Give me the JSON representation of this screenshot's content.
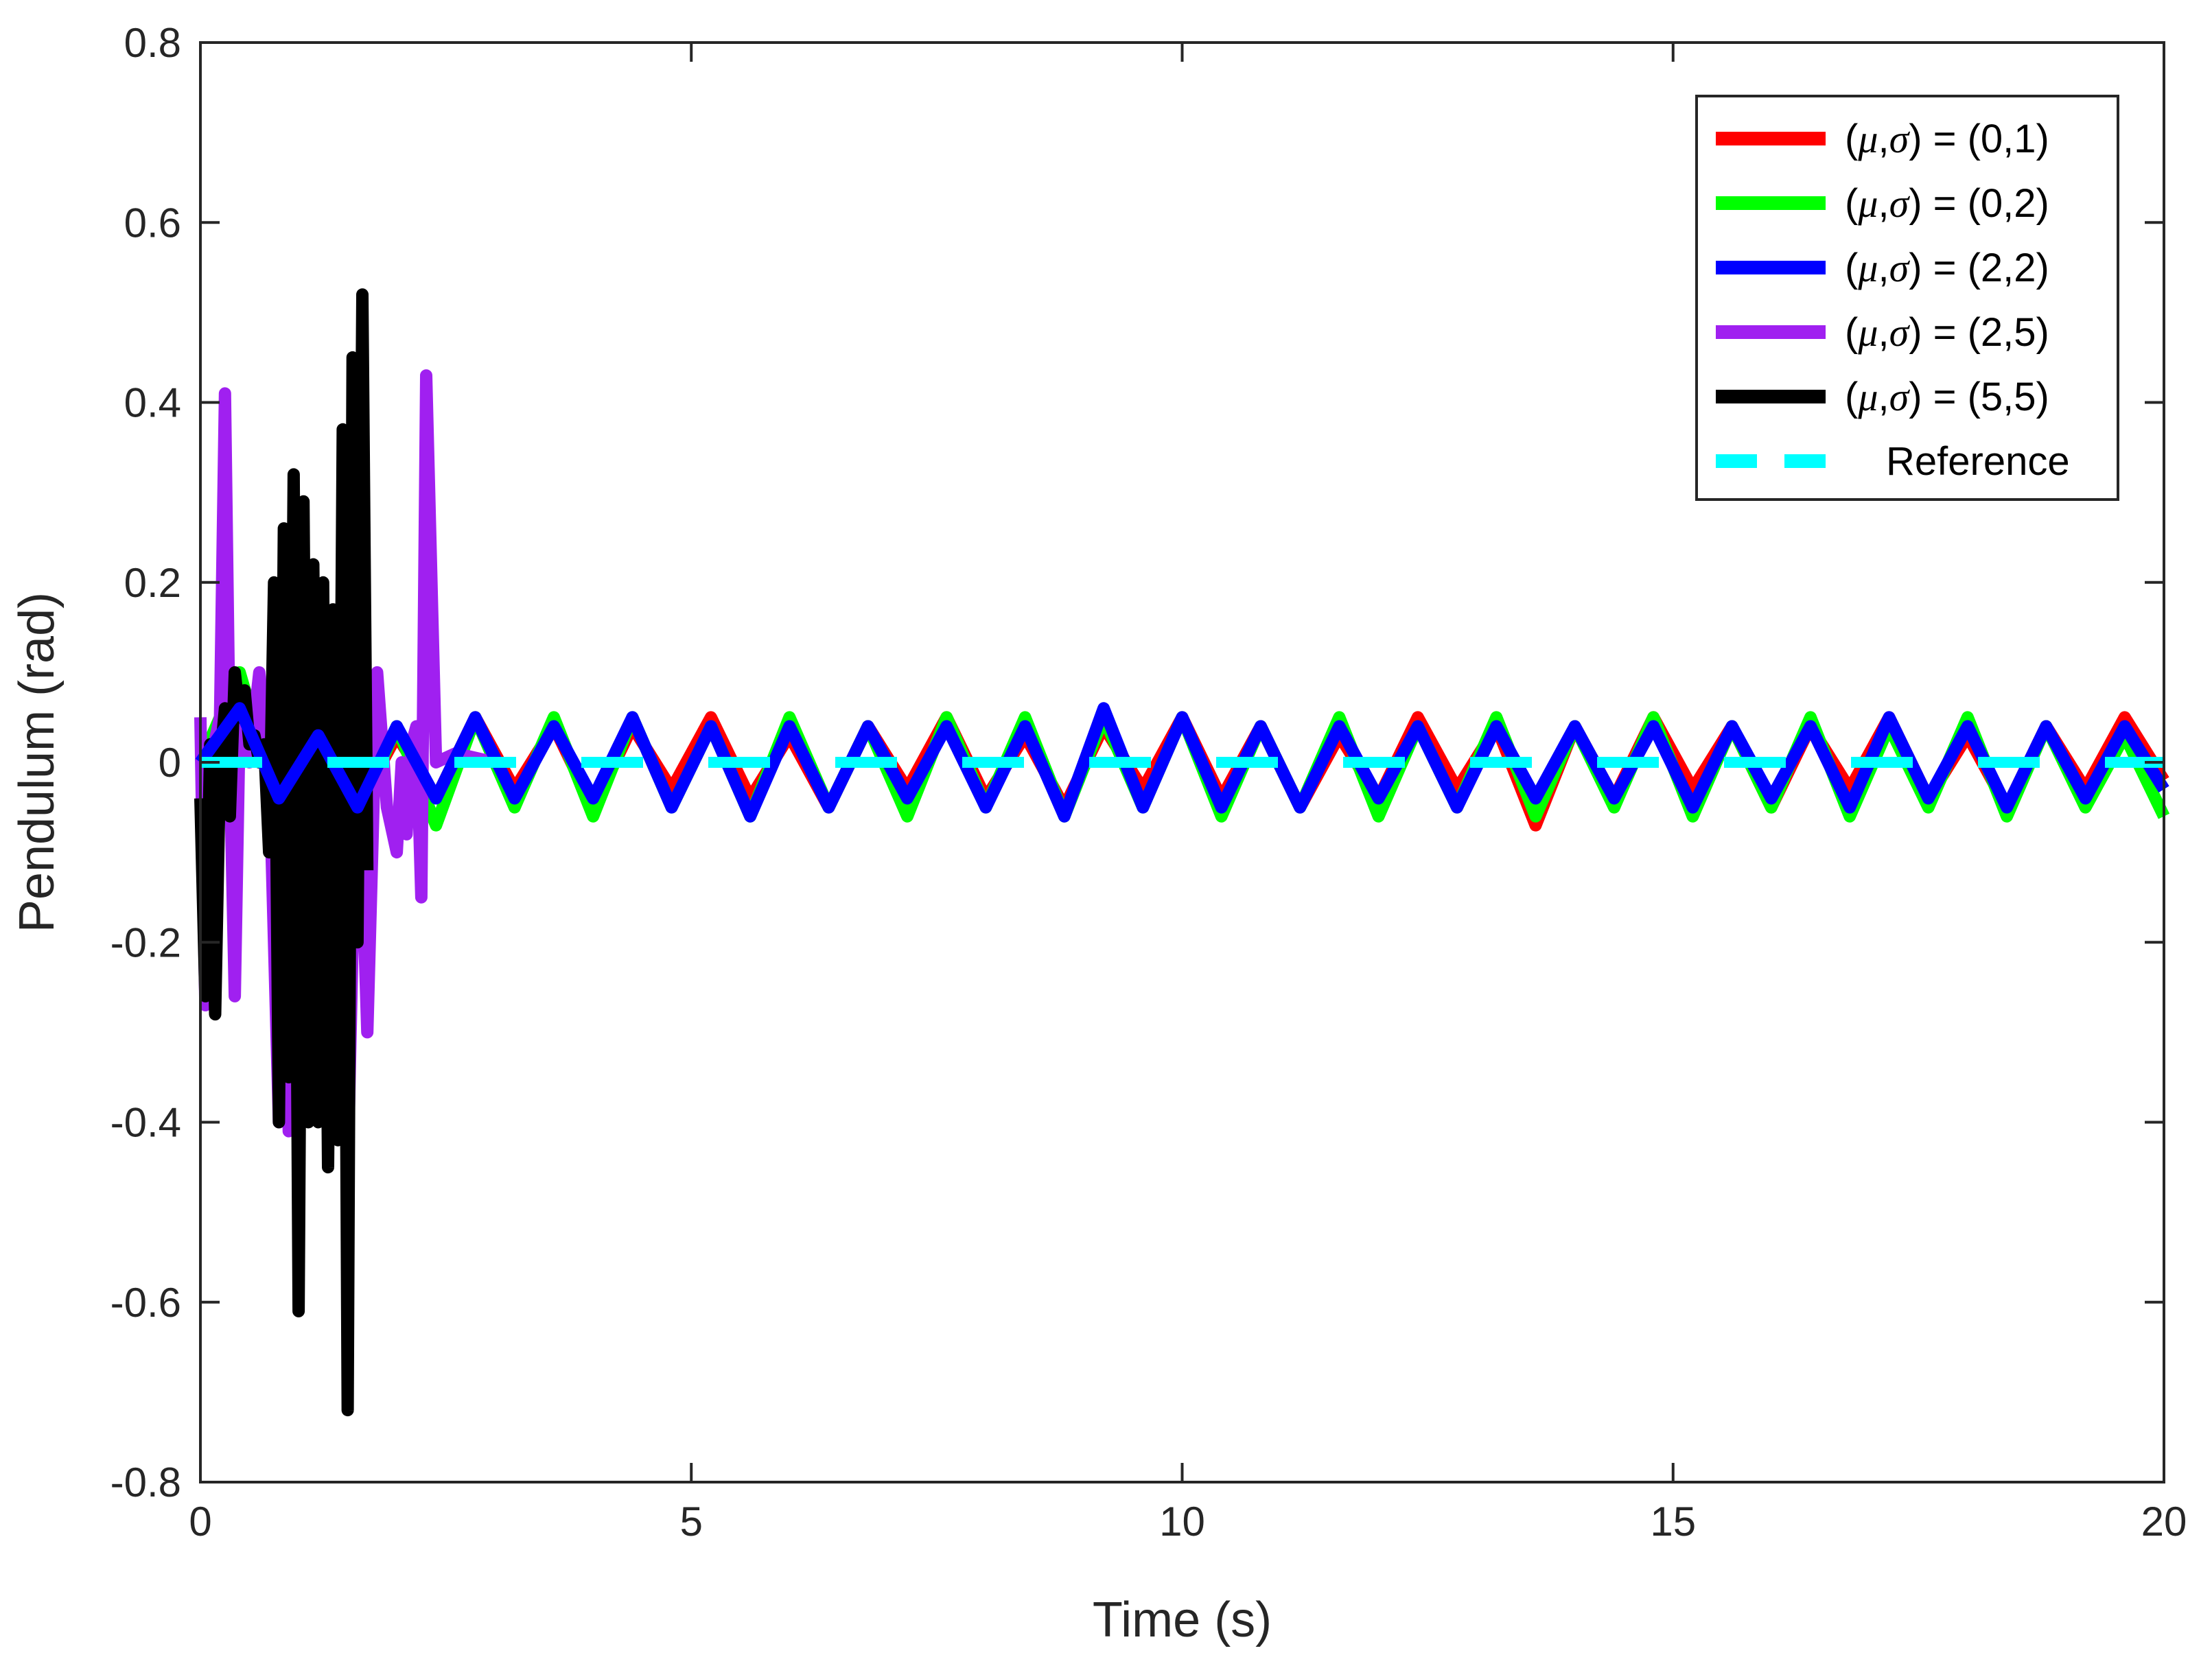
{
  "chart_data": {
    "type": "line",
    "title": "",
    "xlabel": "Time (s)",
    "ylabel": "Pendulum (rad)",
    "xlim": [
      0,
      20
    ],
    "ylim": [
      -0.8,
      0.8
    ],
    "xticks": [
      "0",
      "5",
      "10",
      "15",
      "20"
    ],
    "yticks": [
      "0.8",
      "0.6",
      "0.4",
      "0.2",
      "0",
      "-0.2",
      "-0.4",
      "-0.6",
      "-0.8"
    ],
    "grid": false,
    "legend_position": "top-right",
    "series": [
      {
        "name": "(μ,σ) = (0,1)",
        "color": "#ff0000",
        "x": [
          0.0,
          0.4,
          0.8,
          1.2,
          1.6,
          2.0,
          2.4,
          2.8,
          3.2,
          3.6,
          4.0,
          4.4,
          4.8,
          5.2,
          5.6,
          6.0,
          6.4,
          6.8,
          7.2,
          7.6,
          8.0,
          8.4,
          8.8,
          9.2,
          9.6,
          10.0,
          10.4,
          10.8,
          11.2,
          11.6,
          12.0,
          12.4,
          12.8,
          13.2,
          13.6,
          14.0,
          14.4,
          14.8,
          15.2,
          15.6,
          16.0,
          16.4,
          16.8,
          17.2,
          17.6,
          18.0,
          18.4,
          18.8,
          19.2,
          19.6,
          20.0
        ],
        "y": [
          0.0,
          0.05,
          -0.03,
          0.04,
          -0.05,
          0.03,
          -0.04,
          0.05,
          -0.03,
          0.04,
          -0.05,
          0.04,
          -0.03,
          0.05,
          -0.04,
          0.03,
          -0.05,
          0.04,
          -0.03,
          0.05,
          -0.04,
          0.03,
          -0.05,
          0.04,
          -0.03,
          0.05,
          -0.04,
          0.04,
          -0.05,
          0.03,
          -0.04,
          0.05,
          -0.03,
          0.04,
          -0.07,
          0.04,
          -0.04,
          0.05,
          -0.03,
          0.04,
          -0.05,
          0.04,
          -0.03,
          0.05,
          -0.04,
          0.03,
          -0.05,
          0.04,
          -0.03,
          0.05,
          -0.02
        ]
      },
      {
        "name": "(μ,σ) = (0,2)",
        "color": "#00ff00",
        "x": [
          0.0,
          0.4,
          0.8,
          1.2,
          1.6,
          2.0,
          2.4,
          2.8,
          3.2,
          3.6,
          4.0,
          4.4,
          4.8,
          5.2,
          5.6,
          6.0,
          6.4,
          6.8,
          7.2,
          7.6,
          8.0,
          8.4,
          8.8,
          9.2,
          9.6,
          10.0,
          10.4,
          10.8,
          11.2,
          11.6,
          12.0,
          12.4,
          12.8,
          13.2,
          13.6,
          14.0,
          14.4,
          14.8,
          15.2,
          15.6,
          16.0,
          16.4,
          16.8,
          17.2,
          17.6,
          18.0,
          18.4,
          18.8,
          19.2,
          19.6,
          20.0
        ],
        "y": [
          0.0,
          0.1,
          -0.05,
          0.05,
          -0.06,
          0.04,
          -0.07,
          0.05,
          -0.05,
          0.05,
          -0.06,
          0.05,
          -0.05,
          0.04,
          -0.06,
          0.05,
          -0.05,
          0.04,
          -0.06,
          0.05,
          -0.05,
          0.05,
          -0.06,
          0.05,
          -0.05,
          0.05,
          -0.06,
          0.04,
          -0.05,
          0.05,
          -0.06,
          0.04,
          -0.05,
          0.05,
          -0.06,
          0.04,
          -0.05,
          0.05,
          -0.06,
          0.04,
          -0.05,
          0.05,
          -0.06,
          0.04,
          -0.05,
          0.05,
          -0.06,
          0.04,
          -0.05,
          0.03,
          -0.06
        ]
      },
      {
        "name": "(μ,σ) = (2,2)",
        "color": "#0000ff",
        "x": [
          0.0,
          0.4,
          0.8,
          1.2,
          1.6,
          2.0,
          2.4,
          2.8,
          3.2,
          3.6,
          4.0,
          4.4,
          4.8,
          5.2,
          5.6,
          6.0,
          6.4,
          6.8,
          7.2,
          7.6,
          8.0,
          8.4,
          8.8,
          9.2,
          9.6,
          10.0,
          10.4,
          10.8,
          11.2,
          11.6,
          12.0,
          12.4,
          12.8,
          13.2,
          13.6,
          14.0,
          14.4,
          14.8,
          15.2,
          15.6,
          16.0,
          16.4,
          16.8,
          17.2,
          17.6,
          18.0,
          18.4,
          18.8,
          19.2,
          19.6,
          20.0
        ],
        "y": [
          0.0,
          0.06,
          -0.04,
          0.03,
          -0.05,
          0.04,
          -0.04,
          0.05,
          -0.04,
          0.04,
          -0.04,
          0.05,
          -0.05,
          0.04,
          -0.06,
          0.04,
          -0.05,
          0.04,
          -0.04,
          0.04,
          -0.05,
          0.04,
          -0.06,
          0.06,
          -0.05,
          0.05,
          -0.05,
          0.04,
          -0.05,
          0.04,
          -0.04,
          0.04,
          -0.05,
          0.04,
          -0.04,
          0.04,
          -0.04,
          0.04,
          -0.05,
          0.04,
          -0.04,
          0.04,
          -0.05,
          0.05,
          -0.04,
          0.04,
          -0.05,
          0.04,
          -0.04,
          0.04,
          -0.03
        ]
      },
      {
        "name": "(μ,σ) = (2,5)",
        "color": "#a020f0",
        "x": [
          0.0,
          0.05,
          0.1,
          0.2,
          0.25,
          0.3,
          0.35,
          0.4,
          0.5,
          0.6,
          0.7,
          0.8,
          0.85,
          0.9,
          0.95,
          1.0,
          1.1,
          1.2,
          1.3,
          1.4,
          1.5,
          1.6,
          1.7,
          1.8,
          1.9,
          2.0,
          2.05,
          2.1,
          2.15,
          2.2,
          2.25,
          2.3,
          2.4,
          2.6,
          3.0
        ],
        "y": [
          0.05,
          -0.27,
          0.0,
          0.05,
          0.41,
          0.0,
          -0.26,
          0.05,
          0.0,
          0.1,
          0.0,
          -0.4,
          0.08,
          -0.41,
          0.0,
          0.12,
          -0.1,
          0.05,
          -0.35,
          0.12,
          -0.45,
          0.05,
          -0.3,
          0.1,
          -0.05,
          -0.1,
          0.0,
          -0.08,
          0.02,
          0.04,
          -0.15,
          0.43,
          0.0,
          0.01,
          0.0
        ]
      },
      {
        "name": "(μ,σ) = (5,5)",
        "color": "#000000",
        "x": [
          0.0,
          0.05,
          0.1,
          0.15,
          0.2,
          0.25,
          0.3,
          0.35,
          0.4,
          0.45,
          0.5,
          0.55,
          0.6,
          0.65,
          0.7,
          0.75,
          0.8,
          0.85,
          0.9,
          0.95,
          1.0,
          1.05,
          1.1,
          1.15,
          1.2,
          1.25,
          1.3,
          1.35,
          1.4,
          1.45,
          1.5,
          1.55,
          1.6,
          1.65,
          1.7
        ],
        "y": [
          -0.04,
          -0.26,
          0.02,
          -0.28,
          0.0,
          0.06,
          -0.06,
          0.1,
          0.05,
          0.08,
          0.02,
          0.03,
          0.0,
          0.02,
          -0.1,
          0.2,
          -0.4,
          0.26,
          -0.35,
          0.32,
          -0.61,
          0.29,
          -0.4,
          0.22,
          -0.4,
          0.2,
          -0.45,
          0.17,
          -0.42,
          0.37,
          -0.72,
          0.45,
          -0.2,
          0.52,
          -0.12
        ]
      },
      {
        "name": "Reference",
        "color": "#00ffff",
        "dashed": true,
        "x": [
          0,
          20
        ],
        "y": [
          0,
          0
        ]
      }
    ]
  }
}
